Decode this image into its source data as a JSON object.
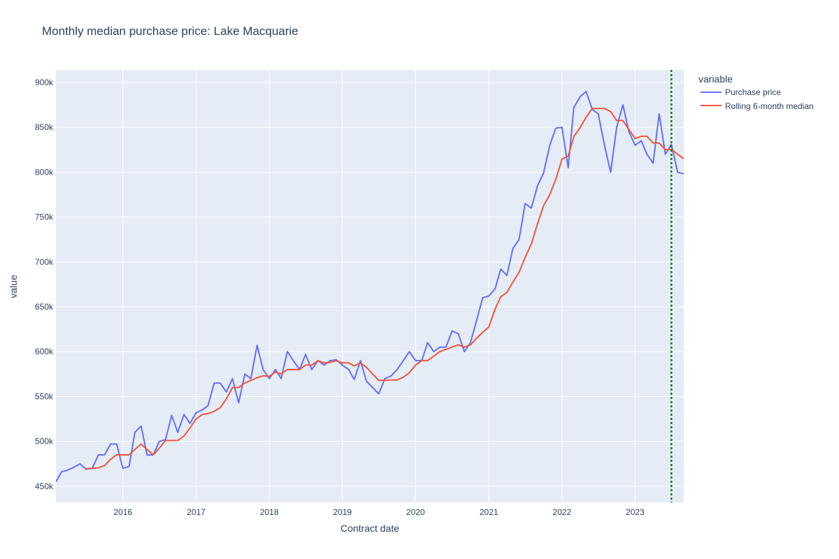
{
  "chart_data": {
    "type": "line",
    "title": "Monthly median purchase price: Lake Macquarie",
    "xlabel": "Contract date",
    "ylabel": "value",
    "x_tick_labels": [
      "2016",
      "2017",
      "2018",
      "2019",
      "2020",
      "2021",
      "2022",
      "2023"
    ],
    "y_tick_labels": [
      "450k",
      "500k",
      "550k",
      "600k",
      "650k",
      "700k",
      "750k",
      "800k",
      "850k",
      "900k"
    ],
    "y_ticks": [
      450000,
      500000,
      550000,
      600000,
      650000,
      700000,
      750000,
      800000,
      850000,
      900000
    ],
    "xlim": [
      "2015-02-01",
      "2023-09-01"
    ],
    "ylim": [
      432000,
      914000
    ],
    "grid": true,
    "legend": {
      "title": "variable",
      "position": "top-right outside plot"
    },
    "marker_line": {
      "x": "2023-07-01",
      "color": "#008000",
      "style": "dotted"
    },
    "colors": {
      "plot_bg": "#e5ecf6",
      "grid": "#ffffff"
    },
    "series": [
      {
        "name": "Purchase price",
        "color": "#636efa",
        "points": [
          [
            "2015-02-01",
            455000
          ],
          [
            "2015-03-01",
            466000
          ],
          [
            "2015-04-01",
            468000
          ],
          [
            "2015-05-01",
            471000
          ],
          [
            "2015-06-01",
            475000
          ],
          [
            "2015-07-01",
            469000
          ],
          [
            "2015-08-01",
            470000
          ],
          [
            "2015-09-01",
            485000
          ],
          [
            "2015-10-01",
            485000
          ],
          [
            "2015-11-01",
            497000
          ],
          [
            "2015-12-01",
            497000
          ],
          [
            "2016-01-01",
            470000
          ],
          [
            "2016-02-01",
            472000
          ],
          [
            "2016-03-01",
            510000
          ],
          [
            "2016-04-01",
            517000
          ],
          [
            "2016-05-01",
            485000
          ],
          [
            "2016-06-01",
            485000
          ],
          [
            "2016-07-01",
            500000
          ],
          [
            "2016-08-01",
            502000
          ],
          [
            "2016-09-01",
            529000
          ],
          [
            "2016-10-01",
            510000
          ],
          [
            "2016-11-01",
            530000
          ],
          [
            "2016-12-01",
            520000
          ],
          [
            "2017-01-01",
            532000
          ],
          [
            "2017-02-01",
            535000
          ],
          [
            "2017-03-01",
            540000
          ],
          [
            "2017-04-01",
            565000
          ],
          [
            "2017-05-01",
            565000
          ],
          [
            "2017-06-01",
            555000
          ],
          [
            "2017-07-01",
            570000
          ],
          [
            "2017-08-01",
            543000
          ],
          [
            "2017-09-01",
            575000
          ],
          [
            "2017-10-01",
            570000
          ],
          [
            "2017-11-01",
            607000
          ],
          [
            "2017-12-01",
            580000
          ],
          [
            "2018-01-01",
            570000
          ],
          [
            "2018-02-01",
            580000
          ],
          [
            "2018-03-01",
            570000
          ],
          [
            "2018-04-01",
            600000
          ],
          [
            "2018-05-01",
            590000
          ],
          [
            "2018-06-01",
            580000
          ],
          [
            "2018-07-01",
            597000
          ],
          [
            "2018-08-01",
            580000
          ],
          [
            "2018-09-01",
            590000
          ],
          [
            "2018-10-01",
            585000
          ],
          [
            "2018-11-01",
            590000
          ],
          [
            "2018-12-01",
            591000
          ],
          [
            "2019-01-01",
            585000
          ],
          [
            "2019-02-01",
            580000
          ],
          [
            "2019-03-01",
            569000
          ],
          [
            "2019-04-01",
            590000
          ],
          [
            "2019-05-01",
            567000
          ],
          [
            "2019-06-01",
            560000
          ],
          [
            "2019-07-01",
            553000
          ],
          [
            "2019-08-01",
            570000
          ],
          [
            "2019-09-01",
            573000
          ],
          [
            "2019-10-01",
            580000
          ],
          [
            "2019-11-01",
            590000
          ],
          [
            "2019-12-01",
            600000
          ],
          [
            "2020-01-01",
            590000
          ],
          [
            "2020-02-01",
            590000
          ],
          [
            "2020-03-01",
            610000
          ],
          [
            "2020-04-01",
            600000
          ],
          [
            "2020-05-01",
            605000
          ],
          [
            "2020-06-01",
            605000
          ],
          [
            "2020-07-01",
            623000
          ],
          [
            "2020-08-01",
            620000
          ],
          [
            "2020-09-01",
            600000
          ],
          [
            "2020-10-01",
            610000
          ],
          [
            "2020-11-01",
            635000
          ],
          [
            "2020-12-01",
            660000
          ],
          [
            "2021-01-01",
            662000
          ],
          [
            "2021-02-01",
            670000
          ],
          [
            "2021-03-01",
            692000
          ],
          [
            "2021-04-01",
            685000
          ],
          [
            "2021-05-01",
            715000
          ],
          [
            "2021-06-01",
            725000
          ],
          [
            "2021-07-01",
            765000
          ],
          [
            "2021-08-01",
            760000
          ],
          [
            "2021-09-01",
            785000
          ],
          [
            "2021-10-01",
            799000
          ],
          [
            "2021-11-01",
            830000
          ],
          [
            "2021-12-01",
            849000
          ],
          [
            "2022-01-01",
            850000
          ],
          [
            "2022-02-01",
            805000
          ],
          [
            "2022-03-01",
            872000
          ],
          [
            "2022-04-01",
            884000
          ],
          [
            "2022-05-01",
            890000
          ],
          [
            "2022-06-01",
            870000
          ],
          [
            "2022-07-01",
            865000
          ],
          [
            "2022-08-01",
            830000
          ],
          [
            "2022-09-01",
            800000
          ],
          [
            "2022-10-01",
            850000
          ],
          [
            "2022-11-01",
            875000
          ],
          [
            "2022-12-01",
            845000
          ],
          [
            "2023-01-01",
            830000
          ],
          [
            "2023-02-01",
            835000
          ],
          [
            "2023-03-01",
            820000
          ],
          [
            "2023-04-01",
            810000
          ],
          [
            "2023-05-01",
            865000
          ],
          [
            "2023-06-01",
            820000
          ],
          [
            "2023-07-01",
            831000
          ],
          [
            "2023-08-01",
            800000
          ],
          [
            "2023-09-01",
            798000
          ]
        ]
      },
      {
        "name": "Rolling 6-month median",
        "color": "#ef553b",
        "points": [
          [
            "2015-07-01",
            469500
          ],
          [
            "2015-08-01",
            470000
          ],
          [
            "2015-09-01",
            470500
          ],
          [
            "2015-10-01",
            473000
          ],
          [
            "2015-11-01",
            480000
          ],
          [
            "2015-12-01",
            485000
          ],
          [
            "2016-01-01",
            485000
          ],
          [
            "2016-02-01",
            485000
          ],
          [
            "2016-03-01",
            491000
          ],
          [
            "2016-04-01",
            497000
          ],
          [
            "2016-05-01",
            491000
          ],
          [
            "2016-06-01",
            485000
          ],
          [
            "2016-07-01",
            492500
          ],
          [
            "2016-08-01",
            501000
          ],
          [
            "2016-09-01",
            501000
          ],
          [
            "2016-10-01",
            501000
          ],
          [
            "2016-11-01",
            506000
          ],
          [
            "2016-12-01",
            515000
          ],
          [
            "2017-01-01",
            525000
          ],
          [
            "2017-02-01",
            530000
          ],
          [
            "2017-03-01",
            531000
          ],
          [
            "2017-04-01",
            533500
          ],
          [
            "2017-05-01",
            537500
          ],
          [
            "2017-06-01",
            547500
          ],
          [
            "2017-07-01",
            560000
          ],
          [
            "2017-08-01",
            560000
          ],
          [
            "2017-09-01",
            565000
          ],
          [
            "2017-10-01",
            568000
          ],
          [
            "2017-11-01",
            571000
          ],
          [
            "2017-12-01",
            573000
          ],
          [
            "2018-01-01",
            572500
          ],
          [
            "2018-02-01",
            577500
          ],
          [
            "2018-03-01",
            575000
          ],
          [
            "2018-04-01",
            580000
          ],
          [
            "2018-05-01",
            580000
          ],
          [
            "2018-06-01",
            580000
          ],
          [
            "2018-07-01",
            585000
          ],
          [
            "2018-08-01",
            585000
          ],
          [
            "2018-09-01",
            590000
          ],
          [
            "2018-10-01",
            587500
          ],
          [
            "2018-11-01",
            588000
          ],
          [
            "2018-12-01",
            590000
          ],
          [
            "2019-01-01",
            587500
          ],
          [
            "2019-02-01",
            587500
          ],
          [
            "2019-03-01",
            584000
          ],
          [
            "2019-04-01",
            587500
          ],
          [
            "2019-05-01",
            582500
          ],
          [
            "2019-06-01",
            575000
          ],
          [
            "2019-07-01",
            568000
          ],
          [
            "2019-08-01",
            568000
          ],
          [
            "2019-09-01",
            568500
          ],
          [
            "2019-10-01",
            568500
          ],
          [
            "2019-11-01",
            571500
          ],
          [
            "2019-12-01",
            576500
          ],
          [
            "2020-01-01",
            585000
          ],
          [
            "2020-02-01",
            590000
          ],
          [
            "2020-03-01",
            590000
          ],
          [
            "2020-04-01",
            595000
          ],
          [
            "2020-05-01",
            600000
          ],
          [
            "2020-06-01",
            602500
          ],
          [
            "2020-07-01",
            605000
          ],
          [
            "2020-08-01",
            607500
          ],
          [
            "2020-09-01",
            605000
          ],
          [
            "2020-10-01",
            607500
          ],
          [
            "2020-11-01",
            615000
          ],
          [
            "2020-12-01",
            621500
          ],
          [
            "2021-01-01",
            627500
          ],
          [
            "2021-02-01",
            647500
          ],
          [
            "2021-03-01",
            661000
          ],
          [
            "2021-04-01",
            666000
          ],
          [
            "2021-05-01",
            677500
          ],
          [
            "2021-06-01",
            688500
          ],
          [
            "2021-07-01",
            705000
          ],
          [
            "2021-08-01",
            720000
          ],
          [
            "2021-09-01",
            742500
          ],
          [
            "2021-10-01",
            762500
          ],
          [
            "2021-11-01",
            775000
          ],
          [
            "2021-12-01",
            792000
          ],
          [
            "2022-01-01",
            814500
          ],
          [
            "2022-02-01",
            818000
          ],
          [
            "2022-03-01",
            839500
          ],
          [
            "2022-04-01",
            849500
          ],
          [
            "2022-05-01",
            861000
          ],
          [
            "2022-06-01",
            871000
          ],
          [
            "2022-07-01",
            871000
          ],
          [
            "2022-08-01",
            871000
          ],
          [
            "2022-09-01",
            867500
          ],
          [
            "2022-10-01",
            857500
          ],
          [
            "2022-11-01",
            857500
          ],
          [
            "2022-12-01",
            847500
          ],
          [
            "2023-01-01",
            837500
          ],
          [
            "2023-02-01",
            840000
          ],
          [
            "2023-03-01",
            840000
          ],
          [
            "2023-04-01",
            832500
          ],
          [
            "2023-05-01",
            832500
          ],
          [
            "2023-06-01",
            825000
          ],
          [
            "2023-07-01",
            825500
          ],
          [
            "2023-08-01",
            820000
          ],
          [
            "2023-09-01",
            815000
          ]
        ]
      }
    ]
  }
}
